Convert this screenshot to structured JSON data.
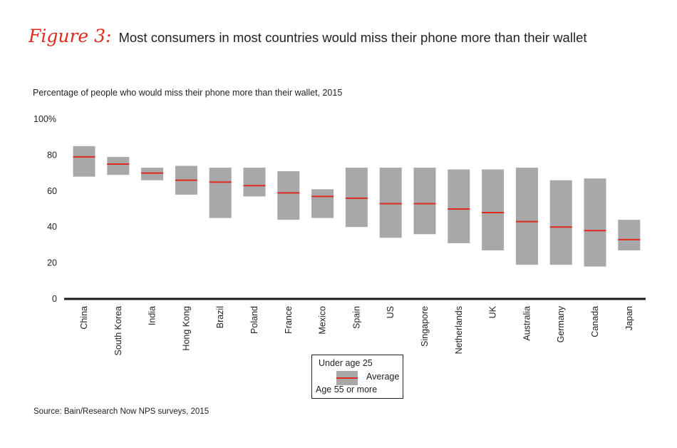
{
  "header": {
    "figure_label": "Figure 3:",
    "title": "Most consumers in most countries would miss their phone more than their wallet"
  },
  "chart_data": {
    "type": "range-bar",
    "title": "Most consumers in most countries would miss their phone more than their wallet",
    "subtitle": "Percentage of people who would miss their phone more than their wallet, 2015",
    "ylim": [
      0,
      100
    ],
    "yticks": [
      "0",
      "20",
      "40",
      "60",
      "80",
      "100%"
    ],
    "ytick_values": [
      0,
      20,
      40,
      60,
      80,
      100
    ],
    "categories": [
      "China",
      "South Korea",
      "India",
      "Hong Kong",
      "Brazil",
      "Poland",
      "France",
      "Mexico",
      "Spain",
      "US",
      "Singapore",
      "Netherlands",
      "UK",
      "Australia",
      "Germany",
      "Canada",
      "Japan"
    ],
    "under_25": [
      85,
      79,
      73,
      74,
      73,
      73,
      71,
      61,
      73,
      73,
      73,
      72,
      72,
      73,
      66,
      67,
      44
    ],
    "average": [
      79,
      75,
      70,
      66,
      65,
      63,
      59,
      57,
      56,
      53,
      53,
      50,
      48,
      43,
      40,
      38,
      33
    ],
    "age_55_plus": [
      68,
      69,
      66,
      58,
      45,
      57,
      44,
      45,
      40,
      34,
      36,
      31,
      27,
      19,
      19,
      18,
      27
    ],
    "colors": {
      "range": "#a8a8aa",
      "average": "#e02a1e",
      "axis": "#1a1a1a"
    },
    "legend": {
      "top_label": "Under age 25",
      "mid_label": "Average",
      "bottom_label": "Age 55 or more",
      "position": "bottom-center"
    },
    "grid": false
  },
  "source": "Source: Bain/Research Now NPS surveys, 2015"
}
